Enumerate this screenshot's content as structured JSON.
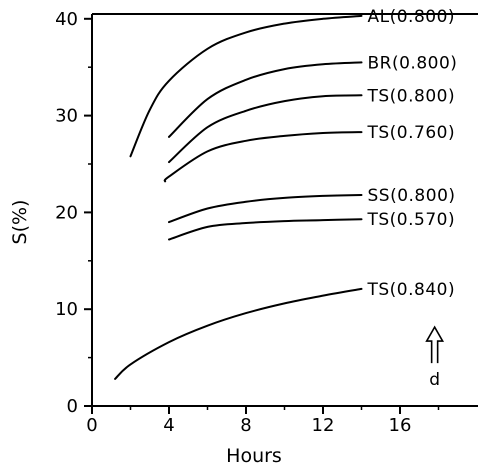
{
  "chart_data": {
    "type": "line",
    "xlabel": "Hours",
    "ylabel": "S(%)",
    "xlim": [
      0,
      20
    ],
    "ylim": [
      0,
      41
    ],
    "xticks": [
      0,
      4,
      8,
      12,
      16
    ],
    "yticks": [
      0,
      10,
      20,
      30,
      40
    ],
    "grid": false,
    "series": [
      {
        "name": "AL(0.800)",
        "x": [
          2,
          3,
          4,
          6,
          8,
          10,
          12,
          14
        ],
        "y": [
          25.8,
          30.6,
          33.6,
          36.9,
          38.6,
          39.5,
          40.0,
          40.3
        ]
      },
      {
        "name": "BR(0.800)",
        "x": [
          4,
          6,
          8,
          10,
          12,
          14
        ],
        "y": [
          27.8,
          31.7,
          33.7,
          34.8,
          35.3,
          35.5
        ]
      },
      {
        "name": "TS(0.800)",
        "x": [
          4,
          6,
          8,
          10,
          12,
          14
        ],
        "y": [
          25.2,
          28.8,
          30.5,
          31.5,
          32.0,
          32.1
        ]
      },
      {
        "name": "TS(0.760)",
        "x": [
          3.8,
          4,
          6,
          8,
          10,
          12,
          14
        ],
        "y": [
          23.2,
          23.7,
          26.3,
          27.4,
          27.9,
          28.2,
          28.3
        ]
      },
      {
        "name": "SS(0.800)",
        "x": [
          4,
          6,
          8,
          10,
          12,
          14
        ],
        "y": [
          19.0,
          20.4,
          21.1,
          21.5,
          21.7,
          21.8
        ]
      },
      {
        "name": "TS(0.570)",
        "x": [
          4,
          6,
          8,
          10,
          12,
          14
        ],
        "y": [
          17.2,
          18.5,
          18.9,
          19.1,
          19.2,
          19.3
        ]
      },
      {
        "name": "TS(0.840)",
        "x": [
          1.2,
          2,
          4,
          6,
          8,
          10,
          12,
          14
        ],
        "y": [
          2.8,
          4.3,
          6.6,
          8.3,
          9.6,
          10.6,
          11.4,
          12.1
        ]
      }
    ],
    "annotation": {
      "label": "d",
      "x": 17.8,
      "y": 6.5
    }
  }
}
